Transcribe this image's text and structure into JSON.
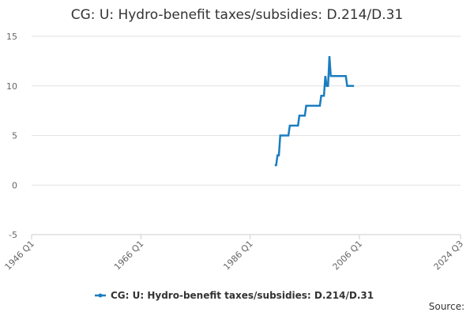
{
  "chart_data": {
    "type": "line",
    "title": "CG: U: Hydro-benefit taxes/subsidies: D.214/D.31",
    "source": "Source:",
    "x": [
      "1990 Q3",
      "1990 Q4",
      "1991 Q1",
      "1991 Q2",
      "1991 Q3",
      "1991 Q4",
      "1992 Q1",
      "1992 Q2",
      "1992 Q3",
      "1992 Q4",
      "1993 Q1",
      "1993 Q2",
      "1993 Q3",
      "1993 Q4",
      "1994 Q1",
      "1994 Q2",
      "1994 Q3",
      "1994 Q4",
      "1995 Q1",
      "1995 Q2",
      "1995 Q3",
      "1995 Q4",
      "1996 Q1",
      "1996 Q2",
      "1996 Q3",
      "1996 Q4",
      "1997 Q1",
      "1997 Q2",
      "1997 Q3",
      "1997 Q4",
      "1998 Q1",
      "1998 Q2",
      "1998 Q3",
      "1998 Q4",
      "1999 Q1",
      "1999 Q2",
      "1999 Q3",
      "1999 Q4",
      "2000 Q1",
      "2000 Q2",
      "2000 Q3",
      "2000 Q4",
      "2001 Q1",
      "2001 Q2",
      "2001 Q3",
      "2001 Q4",
      "2002 Q1",
      "2002 Q2",
      "2002 Q3",
      "2002 Q4",
      "2003 Q1",
      "2003 Q2",
      "2003 Q3",
      "2003 Q4",
      "2004 Q1",
      "2004 Q2",
      "2004 Q3",
      "2004 Q4",
      "2005 Q1"
    ],
    "series": [
      {
        "name": "CG: U: Hydro-benefit taxes/subsidies: D.214/D.31",
        "color": "#1a7dc0",
        "values": [
          2,
          2,
          3,
          3,
          5,
          5,
          5,
          5,
          5,
          5,
          5,
          6,
          6,
          6,
          6,
          6,
          6,
          6,
          7,
          7,
          7,
          7,
          7,
          8,
          8,
          8,
          8,
          8,
          8,
          8,
          8,
          8,
          8,
          8,
          9,
          9,
          9,
          11,
          10,
          10,
          13,
          11,
          11,
          11,
          11,
          11,
          11,
          11,
          11,
          11,
          11,
          11,
          11,
          10,
          10,
          10,
          10,
          10,
          10
        ]
      }
    ],
    "xlim": [
      "1946 Q1",
      "2024 Q3"
    ],
    "xticks": [
      "1946 Q1",
      "1966 Q1",
      "1986 Q1",
      "2006 Q1",
      "2024 Q3"
    ],
    "ylim": [
      -5,
      15
    ],
    "yticks": [
      -5,
      0,
      5,
      10,
      15
    ],
    "grid": true
  }
}
